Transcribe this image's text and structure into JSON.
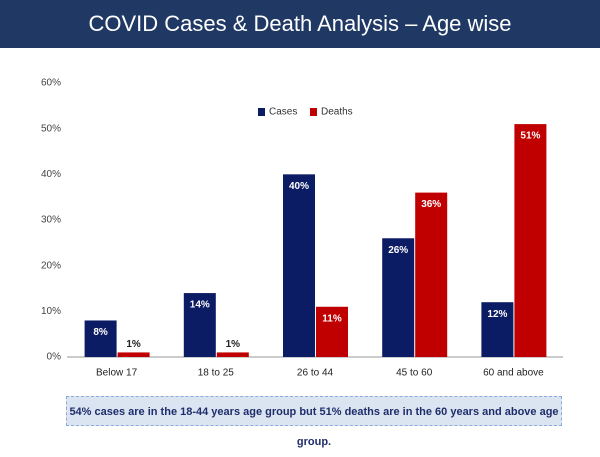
{
  "chart_data": {
    "type": "bar",
    "title": "COVID Cases & Death Analysis – Age wise",
    "categories": [
      "Below 17",
      "18 to 25",
      "26 to 44",
      "45 to 60",
      "60 and above"
    ],
    "series": [
      {
        "name": "Cases",
        "color": "#0c1c64",
        "values": [
          8,
          14,
          40,
          26,
          12
        ],
        "value_labels": [
          "8%",
          "14%",
          "40%",
          "26%",
          "12%"
        ]
      },
      {
        "name": "Deaths",
        "color": "#c00000",
        "values": [
          1,
          1,
          11,
          36,
          51
        ],
        "value_labels": [
          "1%",
          "1%",
          "11%",
          "36%",
          "51%"
        ]
      }
    ],
    "ylim": [
      0,
      60
    ],
    "yticks": [
      {
        "value": 0,
        "label": "0%"
      },
      {
        "value": 10,
        "label": "10%"
      },
      {
        "value": 20,
        "label": "20%"
      },
      {
        "value": 30,
        "label": "30%"
      },
      {
        "value": 40,
        "label": "40%"
      },
      {
        "value": 50,
        "label": "50%"
      },
      {
        "value": 60,
        "label": "60%"
      }
    ],
    "grid": false,
    "note": "54% cases are in the 18-44 years age group but 51% deaths are in the 60 years and above age group."
  }
}
